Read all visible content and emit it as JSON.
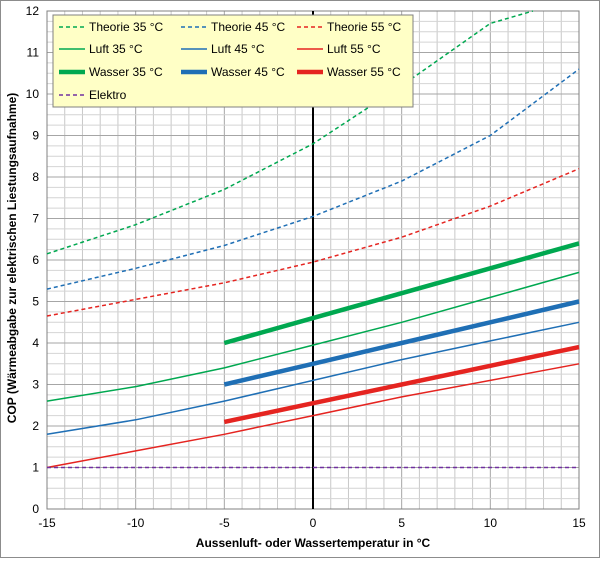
{
  "chart_data": {
    "type": "line",
    "title": "",
    "xlabel": "Aussenluft- oder Wassertemperatur in °C",
    "ylabel": "COP (Wärmeabgabe zur elektrischen Liestungsaufnahme)",
    "xlim": [
      -15,
      15
    ],
    "ylim": [
      0,
      12
    ],
    "xticks": [
      -15,
      -10,
      -5,
      0,
      5,
      10,
      15
    ],
    "yticks": [
      0,
      1,
      2,
      3,
      4,
      5,
      6,
      7,
      8,
      9,
      10,
      11,
      12
    ],
    "grid": true,
    "legend_position": "top-left",
    "series": [
      {
        "name": "Theorie 35 °C",
        "color": "#00a850",
        "style": "dashed",
        "width": "thin",
        "x": [
          -15,
          -10,
          -5,
          0,
          5,
          10,
          12.4
        ],
        "y": [
          6.15,
          6.85,
          7.7,
          8.8,
          10.2,
          11.7,
          12
        ]
      },
      {
        "name": "Theorie 45 °C",
        "color": "#1f6fb5",
        "style": "dashed",
        "width": "thin",
        "x": [
          -15,
          -10,
          -5,
          0,
          5,
          10,
          15
        ],
        "y": [
          5.3,
          5.8,
          6.35,
          7.05,
          7.9,
          9.0,
          10.6
        ]
      },
      {
        "name": "Theorie 55 °C",
        "color": "#e52420",
        "style": "dashed",
        "width": "thin",
        "x": [
          -15,
          -10,
          -5,
          0,
          5,
          10,
          15
        ],
        "y": [
          4.65,
          5.05,
          5.45,
          5.95,
          6.55,
          7.3,
          8.2
        ]
      },
      {
        "name": "Luft 35 °C",
        "color": "#00a850",
        "style": "solid",
        "width": "thin",
        "x": [
          -15,
          -10,
          -5,
          0,
          5,
          10,
          15
        ],
        "y": [
          2.6,
          2.95,
          3.4,
          3.95,
          4.5,
          5.1,
          5.7
        ]
      },
      {
        "name": "Luft 45 °C",
        "color": "#1f6fb5",
        "style": "solid",
        "width": "thin",
        "x": [
          -15,
          -10,
          -5,
          0,
          5,
          10,
          15
        ],
        "y": [
          1.8,
          2.15,
          2.6,
          3.1,
          3.6,
          4.05,
          4.5
        ]
      },
      {
        "name": "Luft 55 °C",
        "color": "#e52420",
        "style": "solid",
        "width": "thin",
        "x": [
          -15,
          -10,
          -5,
          0,
          5,
          10,
          15
        ],
        "y": [
          1.0,
          1.4,
          1.8,
          2.25,
          2.7,
          3.1,
          3.5
        ]
      },
      {
        "name": "Wasser 35 °C",
        "color": "#00a850",
        "style": "solid",
        "width": "thick",
        "x": [
          -5,
          0,
          5,
          10,
          15
        ],
        "y": [
          4.0,
          4.6,
          5.2,
          5.8,
          6.4
        ]
      },
      {
        "name": "Wasser 45 °C",
        "color": "#1f6fb5",
        "style": "solid",
        "width": "thick",
        "x": [
          -5,
          0,
          5,
          10,
          15
        ],
        "y": [
          3.0,
          3.5,
          4.0,
          4.5,
          5.0
        ]
      },
      {
        "name": "Wasser 55 °C",
        "color": "#e52420",
        "style": "solid",
        "width": "thick",
        "x": [
          -5,
          0,
          5,
          10,
          15
        ],
        "y": [
          2.1,
          2.55,
          3.0,
          3.45,
          3.9
        ]
      },
      {
        "name": "Elektro",
        "color": "#7030a0",
        "style": "dashed",
        "width": "thin",
        "x": [
          -15,
          15
        ],
        "y": [
          1.0,
          1.0
        ]
      }
    ]
  }
}
